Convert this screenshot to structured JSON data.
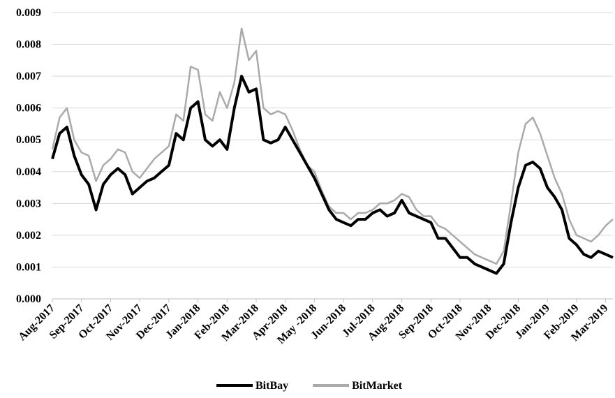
{
  "chart_data": {
    "type": "line",
    "categories": [
      "Aug-2017",
      null,
      null,
      null,
      "Sep-2017",
      null,
      null,
      null,
      "Oct-2017",
      null,
      null,
      null,
      "Nov-2017",
      null,
      null,
      null,
      "Dec-2017",
      null,
      null,
      null,
      "Jan-2018",
      null,
      null,
      null,
      "Feb-2018",
      null,
      null,
      null,
      "Mar-2018",
      null,
      null,
      null,
      "Apr-2018",
      null,
      null,
      null,
      "May -2018",
      null,
      null,
      null,
      "Jun-2018",
      null,
      null,
      null,
      "Jul-2018",
      null,
      null,
      null,
      "Aug-2018",
      null,
      null,
      null,
      "Sep-2018",
      null,
      null,
      null,
      "Oct-2018",
      null,
      null,
      null,
      "Nov-2018",
      null,
      null,
      null,
      "Dec-2018",
      null,
      null,
      null,
      "Jan-2019",
      null,
      null,
      null,
      "Feb-2019",
      null,
      null,
      null,
      "Mar-2019",
      null
    ],
    "series": [
      {
        "name": "BitBay",
        "color": "#000000",
        "values": [
          0.0044,
          0.0052,
          0.0054,
          0.0045,
          0.0039,
          0.0036,
          0.0028,
          0.0036,
          0.0039,
          0.0041,
          0.0039,
          0.0033,
          0.0035,
          0.0037,
          0.0038,
          0.004,
          0.0042,
          0.0052,
          0.005,
          0.006,
          0.0062,
          0.005,
          0.0048,
          0.005,
          0.0047,
          0.006,
          0.007,
          0.0065,
          0.0066,
          0.005,
          0.0049,
          0.005,
          0.0054,
          0.005,
          0.0046,
          0.0042,
          0.0038,
          0.0033,
          0.0028,
          0.0025,
          0.0024,
          0.0023,
          0.0025,
          0.0025,
          0.0027,
          0.0028,
          0.0026,
          0.0027,
          0.0031,
          0.0027,
          0.0026,
          0.0025,
          0.0024,
          0.0019,
          0.0019,
          0.0016,
          0.0013,
          0.0013,
          0.0011,
          0.001,
          0.0009,
          0.0008,
          0.0011,
          0.0024,
          0.0035,
          0.0042,
          0.0043,
          0.0041,
          0.0035,
          0.0032,
          0.0028,
          0.0019,
          0.0017,
          0.0014,
          0.0013,
          0.0015,
          0.0014,
          0.0013
        ]
      },
      {
        "name": "BitMarket",
        "color": "#aaaaaa",
        "values": [
          0.0047,
          0.0057,
          0.006,
          0.005,
          0.0046,
          0.0045,
          0.0037,
          0.0042,
          0.0044,
          0.0047,
          0.0046,
          0.004,
          0.0038,
          0.0041,
          0.0044,
          0.0046,
          0.0048,
          0.0058,
          0.0056,
          0.0073,
          0.0072,
          0.0058,
          0.0056,
          0.0065,
          0.006,
          0.0068,
          0.0085,
          0.0075,
          0.0078,
          0.006,
          0.0058,
          0.0059,
          0.0058,
          0.0053,
          0.0047,
          0.0042,
          0.004,
          0.0034,
          0.0029,
          0.0027,
          0.0027,
          0.0025,
          0.0027,
          0.0027,
          0.0028,
          0.003,
          0.003,
          0.0031,
          0.0033,
          0.0032,
          0.0028,
          0.0026,
          0.0026,
          0.0023,
          0.0022,
          0.002,
          0.0018,
          0.0016,
          0.0014,
          0.0013,
          0.0012,
          0.0011,
          0.0015,
          0.003,
          0.0046,
          0.0055,
          0.0057,
          0.0052,
          0.0045,
          0.0038,
          0.0033,
          0.0025,
          0.002,
          0.0019,
          0.0018,
          0.002,
          0.0023,
          0.0025
        ]
      }
    ],
    "ylim": [
      0,
      0.009
    ],
    "yticks": [
      {
        "value": 0,
        "label": "0.000"
      },
      {
        "value": 0.001,
        "label": "0.001"
      },
      {
        "value": 0.002,
        "label": "0.002"
      },
      {
        "value": 0.003,
        "label": "0.003"
      },
      {
        "value": 0.004,
        "label": "0.004"
      },
      {
        "value": 0.005,
        "label": "0.005"
      },
      {
        "value": 0.006,
        "label": "0.006"
      },
      {
        "value": 0.007,
        "label": "0.007"
      },
      {
        "value": 0.008,
        "label": "0.008"
      },
      {
        "value": 0.009,
        "label": "0.009"
      }
    ],
    "grid": true,
    "legend": "bottom"
  }
}
